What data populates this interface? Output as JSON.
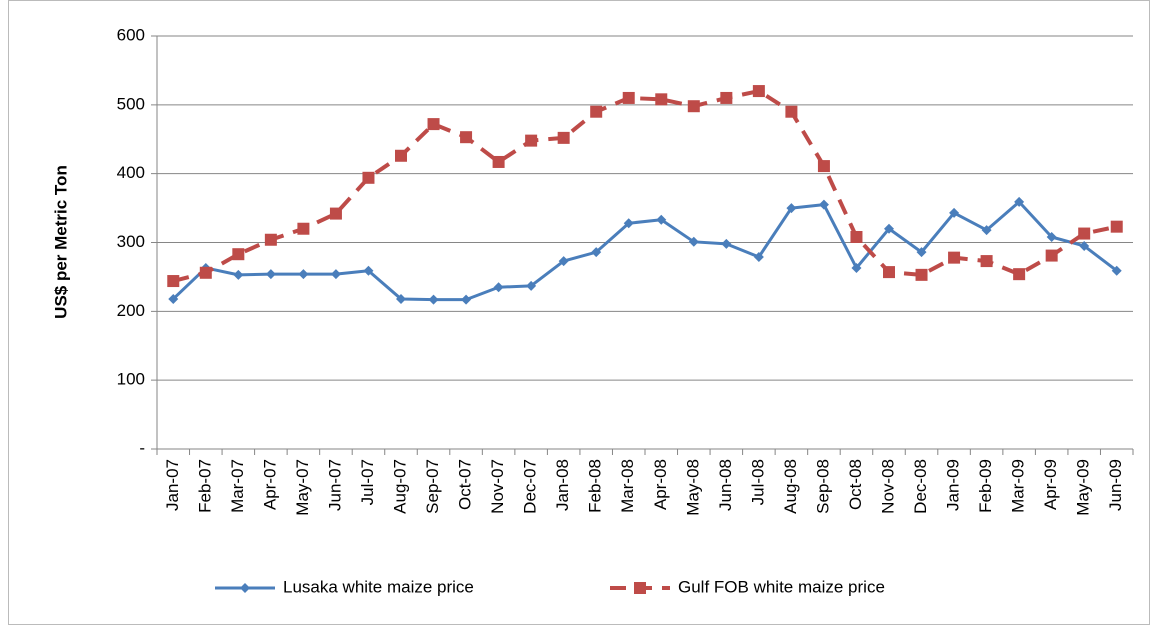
{
  "chart_data": {
    "type": "line",
    "y_label": "US$ per Metric Ton",
    "categories": [
      "Jan-07",
      "Feb-07",
      "Mar-07",
      "Apr-07",
      "May-07",
      "Jun-07",
      "Jul-07",
      "Aug-07",
      "Sep-07",
      "Oct-07",
      "Nov-07",
      "Dec-07",
      "Jan-08",
      "Feb-08",
      "Mar-08",
      "Apr-08",
      "May-08",
      "Jun-08",
      "Jul-08",
      "Aug-08",
      "Sep-08",
      "Oct-08",
      "Nov-08",
      "Dec-08",
      "Jan-09",
      "Feb-09",
      "Mar-09",
      "Apr-09",
      "May-09",
      "Jun-09"
    ],
    "series": [
      {
        "name": "Lusaka white maize price",
        "color": "#4a7ebb",
        "marker": "diamond",
        "line_style": "solid",
        "values": [
          218,
          263,
          253,
          254,
          254,
          254,
          259,
          218,
          217,
          217,
          235,
          237,
          273,
          286,
          328,
          333,
          301,
          298,
          279,
          350,
          355,
          263,
          320,
          286,
          343,
          318,
          359,
          308,
          295,
          259
        ]
      },
      {
        "name": "Gulf FOB white maize price",
        "color": "#be4b48",
        "marker": "square",
        "line_style": "dashed",
        "values": [
          244,
          256,
          283,
          304,
          320,
          342,
          394,
          426,
          472,
          453,
          417,
          448,
          452,
          490,
          510,
          508,
          498,
          510,
          520,
          490,
          411,
          308,
          257,
          253,
          278,
          273,
          254,
          281,
          313,
          323
        ]
      }
    ],
    "ylim": [
      0,
      600
    ],
    "yticks": [
      {
        "value": 0,
        "label": "-"
      },
      100,
      200,
      300,
      400,
      500,
      600
    ],
    "grid": true,
    "legend": "bottom"
  }
}
